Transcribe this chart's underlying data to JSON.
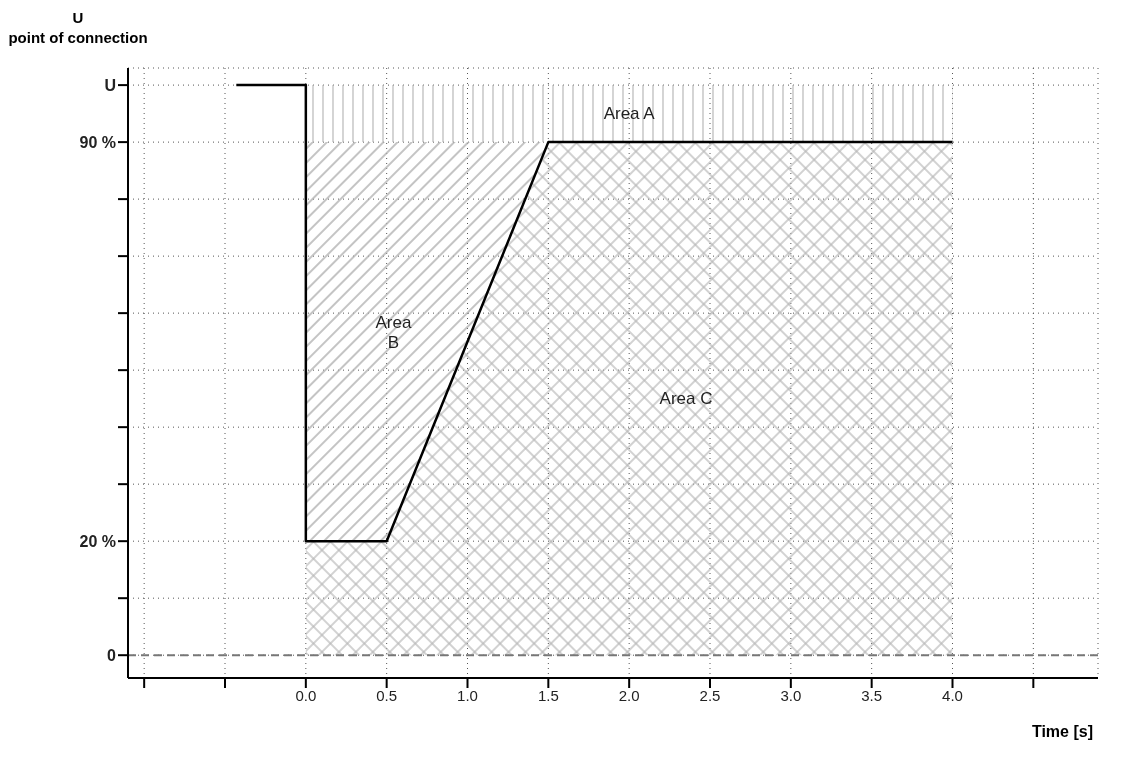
{
  "chart_data": {
    "type": "line",
    "xlabel": "Time [s]",
    "ylabel": "U\npoint of connection",
    "xlim": [
      -1.1,
      4.9
    ],
    "ylim": [
      -4,
      103
    ],
    "xticks": [
      {
        "value": -1,
        "label": null
      },
      {
        "value": -0.5,
        "label": null
      },
      {
        "value": 0,
        "label": "0.0"
      },
      {
        "value": 0.5,
        "label": "0.5"
      },
      {
        "value": 1,
        "label": "1.0"
      },
      {
        "value": 1.5,
        "label": "1.5"
      },
      {
        "value": 2,
        "label": "2.0"
      },
      {
        "value": 2.5,
        "label": "2.5"
      },
      {
        "value": 3,
        "label": "3.0"
      },
      {
        "value": 3.5,
        "label": "3.5"
      },
      {
        "value": 4,
        "label": "4.0"
      },
      {
        "value": 4.5,
        "label": null
      }
    ],
    "yticks": [
      0,
      {
        "value": 10,
        "label": null
      },
      {
        "value": 20,
        "label": "20 %"
      },
      {
        "value": 30,
        "label": null
      },
      {
        "value": 40,
        "label": null
      },
      {
        "value": 50,
        "label": null
      },
      {
        "value": 60,
        "label": null
      },
      {
        "value": 70,
        "label": null
      },
      {
        "value": 80,
        "label": null
      },
      {
        "value": 90,
        "label": "90 %"
      },
      {
        "value": 100,
        "label": "U"
      }
    ],
    "grid": true,
    "marker": "none",
    "line_style": "solid",
    "stacked": true,
    "series": [
      {
        "type": "area",
        "name": "Area C",
        "color": "#b4b4b4",
        "x": [
          0,
          0.5,
          1.5,
          4
        ],
        "values": [
          20,
          20,
          90,
          90
        ]
      },
      {
        "type": "area",
        "name": "Area\nB",
        "color": "#b0b0b0",
        "x": [
          0,
          0.5,
          1.5,
          4
        ],
        "values": [
          70,
          70,
          0,
          0
        ]
      },
      {
        "type": "area",
        "name": "Area A",
        "color": "#b8b8b8",
        "x": [
          0,
          0.5,
          1.5,
          4
        ],
        "values": [
          10,
          10,
          10,
          10
        ]
      },
      {
        "color": "#000000",
        "x": [
          -0.43,
          0,
          0,
          0.5,
          1.5,
          4
        ],
        "values": [
          100,
          100,
          20,
          20,
          90,
          90
        ]
      }
    ],
    "ref_lines": [
      {
        "axis": "y",
        "value": 0,
        "color": "#777777",
        "line_style": "dashed"
      }
    ]
  }
}
